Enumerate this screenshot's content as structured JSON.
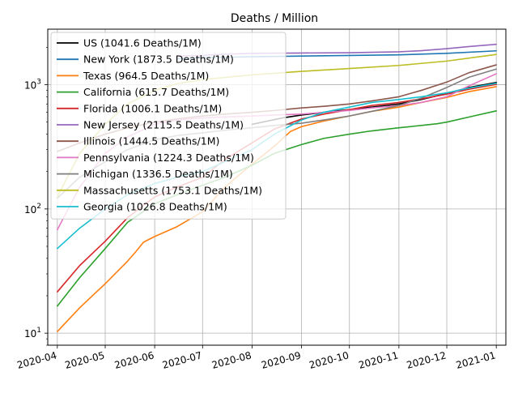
{
  "chart_data": {
    "type": "line",
    "title": "Deaths / Million",
    "xlabel": "",
    "ylabel": "",
    "yscale": "log",
    "ylim": [
      8,
      2800
    ],
    "xlim": [
      "2020-03-26",
      "2021-01-07"
    ],
    "grid": true,
    "legend_position": "top-left",
    "xticks": [
      "2020-04",
      "2020-05",
      "2020-06",
      "2020-07",
      "2020-08",
      "2020-09",
      "2020-10",
      "2020-11",
      "2020-12",
      "2021-01"
    ],
    "yticks": [
      {
        "value": 10,
        "base": "10",
        "exp": "1"
      },
      {
        "value": 100,
        "base": "10",
        "exp": "2"
      },
      {
        "value": 1000,
        "base": "10",
        "exp": "3"
      }
    ],
    "series": [
      {
        "name": "US (1041.6 Deaths/1M)",
        "color": "#000000",
        "x": [
          "2020-08-01",
          "2020-08-20",
          "2020-09-01",
          "2020-09-15",
          "2020-10-01",
          "2020-10-15",
          "2020-11-01",
          "2020-11-15",
          "2020-12-01",
          "2020-12-15",
          "2021-01-01"
        ],
        "y": [
          480,
          540,
          570,
          600,
          630,
          660,
          700,
          760,
          850,
          950,
          1041.6
        ]
      },
      {
        "name": "New York (1873.5 Deaths/1M)",
        "color": "#1f77b4",
        "x": [
          "2020-06-15",
          "2020-07-01",
          "2020-08-01",
          "2020-09-01",
          "2020-10-01",
          "2020-11-01",
          "2020-12-01",
          "2021-01-01"
        ],
        "y": [
          1620,
          1650,
          1680,
          1700,
          1720,
          1740,
          1790,
          1873.5
        ]
      },
      {
        "name": "Texas (964.5 Deaths/1M)",
        "color": "#ff7f0e",
        "x": [
          "2020-04-01",
          "2020-04-15",
          "2020-05-01",
          "2020-05-15",
          "2020-05-20",
          "2020-05-25",
          "2020-06-01",
          "2020-06-15",
          "2020-07-01",
          "2020-07-15",
          "2020-08-01",
          "2020-08-15",
          "2020-08-25",
          "2020-09-01",
          "2020-09-15",
          "2020-10-01",
          "2020-10-15",
          "2020-11-01",
          "2020-11-15",
          "2020-12-01",
          "2020-12-15",
          "2021-01-01"
        ],
        "y": [
          10.3,
          16,
          25,
          38,
          45,
          54,
          60,
          72,
          95,
          150,
          230,
          320,
          420,
          460,
          510,
          560,
          610,
          660,
          720,
          790,
          880,
          964.5
        ]
      },
      {
        "name": "California (615.7 Deaths/1M)",
        "color": "#2ca02c",
        "x": [
          "2020-04-01",
          "2020-04-15",
          "2020-05-01",
          "2020-05-15",
          "2020-06-01",
          "2020-06-15",
          "2020-07-01",
          "2020-07-15",
          "2020-08-01",
          "2020-08-15",
          "2020-09-01",
          "2020-09-15",
          "2020-10-01",
          "2020-10-15",
          "2020-11-01",
          "2020-11-15",
          "2020-11-25",
          "2020-12-01",
          "2020-12-15",
          "2021-01-01"
        ],
        "y": [
          16.5,
          28,
          48,
          78,
          110,
          130,
          155,
          180,
          225,
          280,
          330,
          370,
          400,
          425,
          450,
          470,
          485,
          500,
          550,
          615.7
        ]
      },
      {
        "name": "Florida (1006.1 Deaths/1M)",
        "color": "#d62728",
        "x": [
          "2020-04-01",
          "2020-04-15",
          "2020-05-01",
          "2020-05-15",
          "2020-06-01",
          "2020-06-15",
          "2020-07-01",
          "2020-07-15",
          "2020-08-01",
          "2020-08-15",
          "2020-09-01",
          "2020-09-15",
          "2020-10-01",
          "2020-10-15",
          "2020-11-01",
          "2020-11-15",
          "2020-12-01",
          "2020-12-15",
          "2021-01-01"
        ],
        "y": [
          21.5,
          35,
          55,
          85,
          125,
          150,
          180,
          250,
          340,
          440,
          530,
          580,
          630,
          680,
          720,
          770,
          840,
          920,
          1006.1
        ]
      },
      {
        "name": "New Jersey (2115.5 Deaths/1M)",
        "color": "#9467bd",
        "x": [
          "2020-06-15",
          "2020-07-01",
          "2020-07-15",
          "2020-08-01",
          "2020-09-01",
          "2020-10-01",
          "2020-11-01",
          "2020-11-15",
          "2020-12-01",
          "2020-12-15",
          "2021-01-01"
        ],
        "y": [
          1700,
          1720,
          1760,
          1790,
          1800,
          1810,
          1840,
          1880,
          1950,
          2030,
          2115.5
        ]
      },
      {
        "name": "Illinois (1444.5 Deaths/1M)",
        "color": "#8c564b",
        "x": [
          "2020-04-01",
          "2020-04-15",
          "2020-05-01",
          "2020-05-15",
          "2020-06-01",
          "2020-06-15",
          "2020-07-01",
          "2020-07-15",
          "2020-08-01",
          "2020-08-15",
          "2020-09-01",
          "2020-09-15",
          "2020-10-01",
          "2020-10-15",
          "2020-11-01",
          "2020-11-15",
          "2020-12-01",
          "2020-12-15",
          "2021-01-01"
        ],
        "y": [
          290,
          340,
          400,
          450,
          500,
          530,
          560,
          580,
          600,
          620,
          650,
          670,
          700,
          740,
          800,
          900,
          1050,
          1250,
          1444.5
        ]
      },
      {
        "name": "Pennsylvania (1224.3 Deaths/1M)",
        "color": "#e377c2",
        "x": [
          "2020-04-01",
          "2020-04-15",
          "2020-05-01",
          "2020-05-15",
          "2020-06-01",
          "2020-06-15",
          "2020-07-01",
          "2020-07-15",
          "2020-08-01",
          "2020-08-15",
          "2020-09-01",
          "2020-09-15",
          "2020-10-01",
          "2020-10-15",
          "2020-11-01",
          "2020-11-15",
          "2020-12-01",
          "2020-12-15",
          "2021-01-01"
        ],
        "y": [
          68,
          150,
          280,
          380,
          480,
          520,
          540,
          550,
          560,
          570,
          580,
          600,
          620,
          650,
          680,
          720,
          800,
          980,
          1224.3
        ]
      },
      {
        "name": "Michigan (1336.5 Deaths/1M)",
        "color": "#7f7f7f",
        "x": [
          "2020-04-01",
          "2020-04-15",
          "2020-05-01",
          "2020-05-15",
          "2020-06-01",
          "2020-06-15",
          "2020-07-01",
          "2020-07-15",
          "2020-08-01",
          "2020-08-15",
          "2020-09-01",
          "2020-09-15",
          "2020-10-01",
          "2020-10-15",
          "2020-11-01",
          "2020-11-15",
          "2020-12-01",
          "2020-12-15",
          "2021-01-01"
        ],
        "y": [
          122,
          180,
          240,
          300,
          360,
          390,
          410,
          430,
          450,
          470,
          490,
          520,
          560,
          610,
          680,
          780,
          950,
          1150,
          1336.5
        ]
      },
      {
        "name": "Massachusetts (1753.1 Deaths/1M)",
        "color": "#bcbd22",
        "x": [
          "2020-04-01",
          "2020-04-15",
          "2020-05-01",
          "2020-05-15",
          "2020-06-01",
          "2020-06-15",
          "2020-07-01",
          "2020-08-01",
          "2020-09-01",
          "2020-10-01",
          "2020-11-01",
          "2020-12-01",
          "2021-01-01"
        ],
        "y": [
          125,
          280,
          480,
          700,
          900,
          1020,
          1100,
          1200,
          1280,
          1350,
          1430,
          1550,
          1753.1
        ]
      },
      {
        "name": "Georgia (1026.8 Deaths/1M)",
        "color": "#17becf",
        "x": [
          "2020-04-01",
          "2020-04-15",
          "2020-05-01",
          "2020-05-15",
          "2020-06-01",
          "2020-06-15",
          "2020-07-01",
          "2020-07-15",
          "2020-08-01",
          "2020-08-15",
          "2020-09-01",
          "2020-09-15",
          "2020-10-01",
          "2020-10-15",
          "2020-11-01",
          "2020-11-15",
          "2020-12-01",
          "2020-12-15",
          "2021-01-01"
        ],
        "y": [
          48,
          70,
          100,
          130,
          160,
          180,
          200,
          240,
          300,
          400,
          520,
          600,
          660,
          720,
          760,
          800,
          860,
          940,
          1026.8
        ]
      }
    ]
  }
}
